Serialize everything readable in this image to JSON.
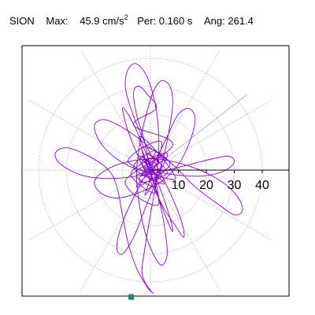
{
  "header": {
    "station": "SION",
    "max_label": "Max:",
    "max_value": "45.9",
    "max_unit": "cm/s",
    "max_exp": "2",
    "per_label": "Per:",
    "per_value": "0.160 s",
    "ang_label": "Ang:",
    "ang_value": "261.4"
  },
  "colors": {
    "trace": "#8B00D4",
    "grid": "#999999",
    "axis": "#000000",
    "marker": "#0E8C73",
    "direction_line": "#bbbbbb"
  },
  "chart_data": {
    "type": "scatter",
    "subtype": "polar-hodogram",
    "title": "SION  Max: 45.9 cm/s2  Per: 0.160 s  Ang: 261.4",
    "r_ticks": [
      10,
      20,
      30,
      40
    ],
    "r_tick_labels": [
      "10",
      "20",
      "30",
      "40"
    ],
    "r_max": 50,
    "grid": true,
    "peak": {
      "value": 45.9,
      "angle_deg": 261.4
    },
    "direction_line_angle_deg": 38,
    "trace": [
      [
        1,
        2
      ],
      [
        -4,
        5
      ],
      [
        3,
        -3
      ],
      [
        -2,
        -1
      ],
      [
        5,
        4
      ],
      [
        -3,
        3
      ],
      [
        2,
        -6
      ],
      [
        -5,
        -2
      ],
      [
        4,
        1
      ],
      [
        -1,
        6
      ],
      [
        6,
        -1
      ],
      [
        -4,
        -4
      ],
      [
        2,
        7
      ],
      [
        -6,
        1
      ],
      [
        5,
        -5
      ],
      [
        -2,
        3
      ],
      [
        3,
        3
      ],
      [
        -5,
        -6
      ],
      [
        7,
        2
      ],
      [
        -3,
        8
      ],
      [
        2,
        -8
      ],
      [
        -7,
        -1
      ],
      [
        6,
        6
      ],
      [
        -2,
        -9
      ],
      [
        4,
        10
      ],
      [
        -8,
        3
      ],
      [
        9,
        -3
      ],
      [
        -4,
        12
      ],
      [
        3,
        -12
      ],
      [
        -9,
        -4
      ],
      [
        8,
        9
      ],
      [
        -6,
        16
      ],
      [
        2,
        22
      ],
      [
        -1,
        27
      ],
      [
        -4,
        30
      ],
      [
        -6,
        28
      ],
      [
        -5,
        20
      ],
      [
        -2,
        10
      ],
      [
        0,
        0
      ],
      [
        3,
        -10
      ],
      [
        6,
        -18
      ],
      [
        8,
        -22
      ],
      [
        7,
        -17
      ],
      [
        4,
        -8
      ],
      [
        0,
        2
      ],
      [
        -4,
        12
      ],
      [
        -8,
        20
      ],
      [
        -10,
        22
      ],
      [
        -8,
        14
      ],
      [
        -4,
        4
      ],
      [
        1,
        -6
      ],
      [
        5,
        -14
      ],
      [
        9,
        -20
      ],
      [
        12,
        -24
      ],
      [
        11,
        -18
      ],
      [
        7,
        -8
      ],
      [
        2,
        2
      ],
      [
        -3,
        12
      ],
      [
        -7,
        22
      ],
      [
        -9,
        30
      ],
      [
        -8,
        36
      ],
      [
        -5,
        38
      ],
      [
        -1,
        33
      ],
      [
        2,
        22
      ],
      [
        3,
        10
      ],
      [
        2,
        -4
      ],
      [
        0,
        -16
      ],
      [
        -2,
        -28
      ],
      [
        -3,
        -36
      ],
      [
        -2,
        -40
      ],
      [
        0,
        -43
      ],
      [
        1,
        -44
      ],
      [
        -1,
        -42
      ],
      [
        -5,
        -35
      ],
      [
        -8,
        -26
      ],
      [
        -10,
        -16
      ],
      [
        -12,
        -6
      ],
      [
        -15,
        0
      ],
      [
        -22,
        5
      ],
      [
        -30,
        8
      ],
      [
        -34,
        6
      ],
      [
        -32,
        2
      ],
      [
        -24,
        -2
      ],
      [
        -14,
        -3
      ],
      [
        -4,
        -2
      ],
      [
        6,
        0
      ],
      [
        14,
        2
      ],
      [
        22,
        4
      ],
      [
        28,
        5
      ],
      [
        30,
        3
      ],
      [
        27,
        0
      ],
      [
        20,
        -2
      ],
      [
        12,
        -2
      ],
      [
        4,
        -1
      ],
      [
        -4,
        0
      ],
      [
        -12,
        4
      ],
      [
        -18,
        10
      ],
      [
        -20,
        16
      ],
      [
        -16,
        18
      ],
      [
        -8,
        14
      ],
      [
        0,
        8
      ],
      [
        8,
        2
      ],
      [
        16,
        -6
      ],
      [
        24,
        -12
      ],
      [
        30,
        -16
      ],
      [
        33,
        -14
      ],
      [
        30,
        -8
      ],
      [
        22,
        -2
      ],
      [
        12,
        2
      ],
      [
        2,
        4
      ],
      [
        -8,
        3
      ],
      [
        -16,
        0
      ],
      [
        -20,
        -4
      ],
      [
        -18,
        -8
      ],
      [
        -12,
        -10
      ],
      [
        -4,
        -8
      ],
      [
        4,
        -4
      ],
      [
        10,
        2
      ],
      [
        14,
        10
      ],
      [
        16,
        18
      ],
      [
        14,
        22
      ],
      [
        10,
        20
      ],
      [
        6,
        12
      ],
      [
        2,
        4
      ],
      [
        -3,
        -4
      ],
      [
        -8,
        -14
      ],
      [
        -11,
        -22
      ],
      [
        -12,
        -28
      ],
      [
        -10,
        -30
      ],
      [
        -6,
        -24
      ],
      [
        -2,
        -14
      ],
      [
        2,
        -4
      ],
      [
        5,
        6
      ],
      [
        7,
        16
      ],
      [
        8,
        24
      ],
      [
        7,
        30
      ],
      [
        4,
        32
      ],
      [
        1,
        28
      ],
      [
        -2,
        18
      ],
      [
        -4,
        8
      ],
      [
        -5,
        -2
      ],
      [
        -4,
        -12
      ],
      [
        -2,
        -22
      ],
      [
        1,
        -30
      ],
      [
        4,
        -34
      ],
      [
        6,
        -30
      ],
      [
        5,
        -20
      ],
      [
        3,
        -10
      ],
      [
        1,
        0
      ],
      [
        -3,
        5
      ],
      [
        4,
        -2
      ],
      [
        -2,
        1
      ],
      [
        1,
        3
      ],
      [
        -3,
        -2
      ],
      [
        2,
        0
      ]
    ]
  }
}
